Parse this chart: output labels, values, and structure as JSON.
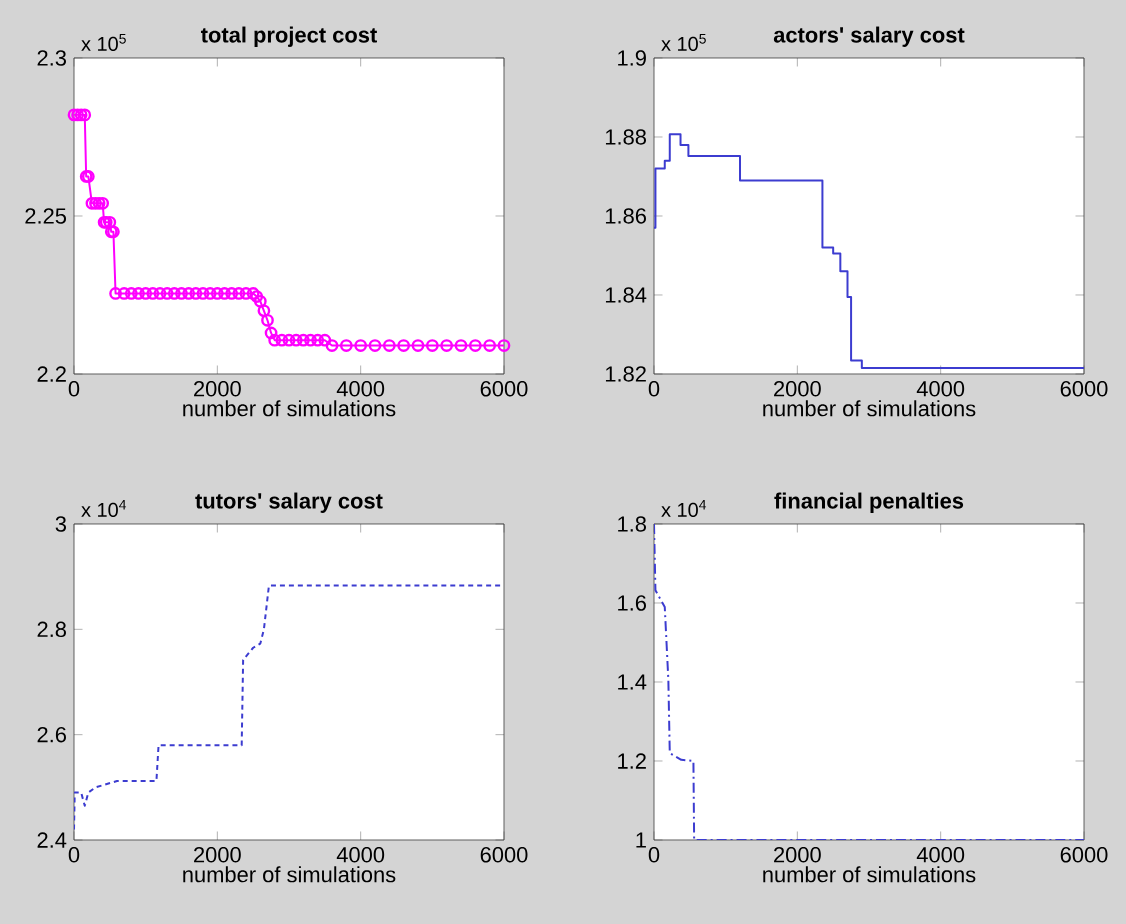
{
  "chart_data": [
    {
      "type": "line",
      "title": "total project cost",
      "xlabel": "number of simulations",
      "annotations": [
        "x 10$^{5}$"
      ],
      "xlim": [
        0,
        6000
      ],
      "ylim": [
        2.2,
        2.3
      ],
      "xticks": [
        0,
        2000,
        4000,
        6000
      ],
      "yticks": [
        2.2,
        2.25,
        2.3
      ],
      "grid": false,
      "marker": "circle",
      "line_style": "solid",
      "series": [
        {
          "color": "#ff00ff",
          "x": [
            0,
            50,
            100,
            150,
            170,
            200,
            250,
            300,
            350,
            400,
            420,
            450,
            500,
            520,
            550,
            580,
            700,
            800,
            900,
            1000,
            1100,
            1200,
            1300,
            1400,
            1500,
            1600,
            1700,
            1800,
            1900,
            2000,
            2100,
            2200,
            2300,
            2400,
            2500,
            2550,
            2600,
            2650,
            2700,
            2750,
            2800,
            2900,
            3000,
            3100,
            3200,
            3300,
            3400,
            3500,
            3600,
            3800,
            4000,
            4200,
            4400,
            4600,
            4800,
            5000,
            5200,
            5400,
            5600,
            5800,
            6000
          ],
          "values": [
            2.282,
            2.282,
            2.282,
            2.282,
            2.2625,
            2.2625,
            2.254,
            2.254,
            2.254,
            2.254,
            2.248,
            2.248,
            2.248,
            2.245,
            2.245,
            2.2255,
            2.2255,
            2.2255,
            2.2255,
            2.2255,
            2.2255,
            2.2255,
            2.2255,
            2.2255,
            2.2255,
            2.2255,
            2.2255,
            2.2255,
            2.2255,
            2.2255,
            2.2255,
            2.2255,
            2.2255,
            2.2255,
            2.2255,
            2.2245,
            2.223,
            2.22,
            2.217,
            2.213,
            2.2107,
            2.2107,
            2.2107,
            2.2107,
            2.2107,
            2.2107,
            2.2107,
            2.2107,
            2.209,
            2.209,
            2.209,
            2.209,
            2.209,
            2.209,
            2.209,
            2.209,
            2.209,
            2.209,
            2.209,
            2.209,
            2.209
          ]
        }
      ]
    },
    {
      "type": "step",
      "title": "actors' salary cost",
      "xlabel": "number of simulations",
      "annotations": [
        "x 10$^{5}$"
      ],
      "xlim": [
        0,
        6000
      ],
      "ylim": [
        1.82,
        1.9
      ],
      "xticks": [
        0,
        2000,
        4000,
        6000
      ],
      "yticks": [
        1.82,
        1.84,
        1.86,
        1.88,
        1.9
      ],
      "grid": false,
      "line_style": "solid",
      "series": [
        {
          "color": "#3c3cd0",
          "x": [
            0,
            20,
            150,
            220,
            370,
            480,
            1200,
            2350,
            2500,
            2600,
            2700,
            2750,
            2900,
            6000
          ],
          "values": [
            1.857,
            1.872,
            1.874,
            1.8807,
            1.878,
            1.8752,
            1.869,
            1.852,
            1.8505,
            1.846,
            1.8395,
            1.8234,
            1.8215,
            1.8215
          ]
        }
      ]
    },
    {
      "type": "line",
      "title": "tutors' salary cost",
      "xlabel": "number of simulations",
      "annotations": [
        "x 10$^{4}$"
      ],
      "xlim": [
        0,
        6000
      ],
      "ylim": [
        2.4,
        3
      ],
      "xticks": [
        0,
        2000,
        4000,
        6000
      ],
      "yticks": [
        2.4,
        2.6,
        2.8,
        3
      ],
      "grid": false,
      "line_style": "dashed",
      "series": [
        {
          "color": "#3c3cd0",
          "x": [
            0,
            10,
            100,
            150,
            200,
            300,
            600,
            1150,
            1180,
            2340,
            2360,
            2500,
            2600,
            2650,
            2720,
            6000
          ],
          "values": [
            2.42,
            2.49,
            2.49,
            2.465,
            2.49,
            2.5,
            2.512,
            2.512,
            2.58,
            2.58,
            2.742,
            2.765,
            2.773,
            2.8,
            2.883,
            2.883
          ]
        }
      ]
    },
    {
      "type": "line",
      "title": "financial penalties",
      "xlabel": "number of simulations",
      "annotations": [
        "x 10$^{4}$"
      ],
      "xlim": [
        0,
        6000
      ],
      "ylim": [
        1,
        1.8
      ],
      "xticks": [
        0,
        2000,
        4000,
        6000
      ],
      "yticks": [
        1,
        1.2,
        1.4,
        1.6,
        1.8
      ],
      "grid": false,
      "line_style": "dashdot",
      "series": [
        {
          "color": "#3c3cd0",
          "x": [
            0,
            20,
            150,
            200,
            220,
            380,
            550,
            560,
            6000
          ],
          "values": [
            1.8,
            1.632,
            1.59,
            1.406,
            1.22,
            1.203,
            1.2,
            1,
            1
          ]
        }
      ]
    }
  ]
}
